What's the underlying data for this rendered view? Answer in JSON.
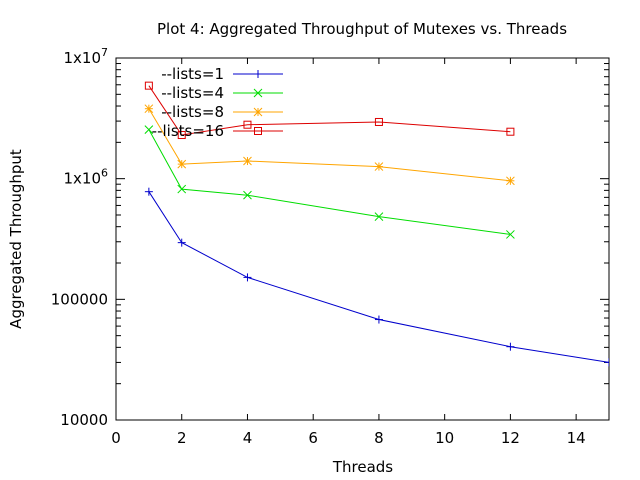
{
  "chart_data": {
    "type": "line",
    "title": "Plot 4: Aggregated Throughput of Mutexes vs. Threads",
    "xlabel": "Threads",
    "ylabel": "Aggregated Throughput",
    "xlim": [
      0,
      15
    ],
    "ylim": [
      10000,
      10000000
    ],
    "yscale": "log",
    "grid": false,
    "legend_position": "top-left",
    "x_ticks": [
      {
        "value": 0,
        "label": "0"
      },
      {
        "value": 2,
        "label": "2"
      },
      {
        "value": 4,
        "label": "4"
      },
      {
        "value": 6,
        "label": "6"
      },
      {
        "value": 8,
        "label": "8"
      },
      {
        "value": 10,
        "label": "10"
      },
      {
        "value": 12,
        "label": "12"
      },
      {
        "value": 14,
        "label": "14"
      }
    ],
    "y_ticks": [
      {
        "value": 10000,
        "label": "10000",
        "sup": ""
      },
      {
        "value": 100000,
        "label": "100000",
        "sup": ""
      },
      {
        "value": 1000000,
        "label": "1x10",
        "sup": "6"
      },
      {
        "value": 10000000,
        "label": "1x10",
        "sup": "7"
      }
    ],
    "series": [
      {
        "name": "--lists=1",
        "color": "#0000cc",
        "marker": "plus",
        "x": [
          1,
          2,
          4,
          8,
          12,
          15
        ],
        "y": [
          780000,
          295000,
          152000,
          68000,
          40500,
          30000
        ]
      },
      {
        "name": "--lists=4",
        "color": "#00dd00",
        "marker": "cross",
        "x": [
          1,
          2,
          4,
          8,
          12
        ],
        "y": [
          2550000,
          820000,
          730000,
          485000,
          345000
        ]
      },
      {
        "name": "--lists=8",
        "color": "#ffa500",
        "marker": "star",
        "x": [
          1,
          2,
          4,
          8,
          12
        ],
        "y": [
          3800000,
          1320000,
          1400000,
          1260000,
          960000
        ]
      },
      {
        "name": "--lists=16",
        "color": "#dd0000",
        "marker": "square",
        "x": [
          1,
          2,
          4,
          8,
          12
        ],
        "y": [
          5900000,
          2300000,
          2800000,
          2950000,
          2450000
        ]
      }
    ]
  }
}
